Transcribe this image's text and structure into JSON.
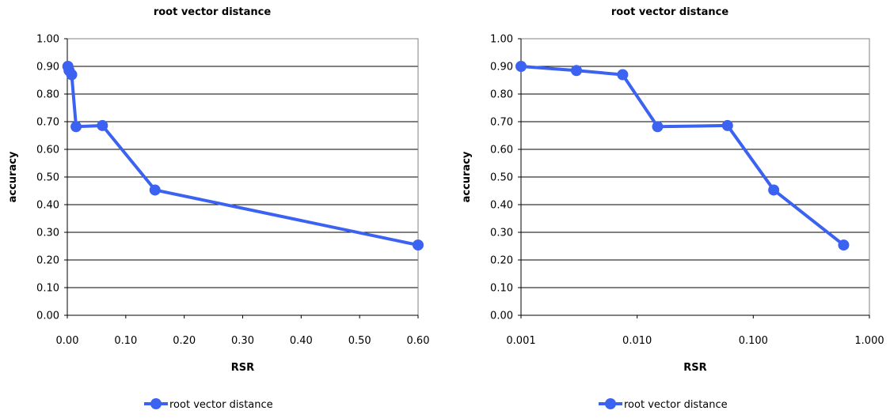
{
  "chart_data": [
    {
      "type": "line",
      "title": "root vector distance",
      "xlabel": "RSR",
      "ylabel": "accuracy",
      "x_scale": "linear",
      "xlim": [
        0,
        0.6
      ],
      "ylim": [
        0,
        1
      ],
      "x_ticks": [
        0,
        0.1,
        0.2,
        0.3,
        0.4,
        0.5,
        0.6
      ],
      "x_tick_labels": [
        "0.00",
        "0.10",
        "0.20",
        "0.30",
        "0.40",
        "0.50",
        "0.60"
      ],
      "y_ticks": [
        0,
        0.1,
        0.2,
        0.3,
        0.4,
        0.5,
        0.6,
        0.7,
        0.8,
        0.9,
        1.0
      ],
      "y_tick_labels": [
        "0.00",
        "0.10",
        "0.20",
        "0.30",
        "0.40",
        "0.50",
        "0.60",
        "0.70",
        "0.80",
        "0.90",
        "1.00"
      ],
      "grid": "horizontal",
      "legend_position": "bottom",
      "series": [
        {
          "name": "root vector distance",
          "color": "#3b62f0",
          "x": [
            0.001,
            0.003,
            0.0075,
            0.015,
            0.06,
            0.15,
            0.6
          ],
          "y": [
            0.9,
            0.885,
            0.87,
            0.682,
            0.686,
            0.453,
            0.254
          ]
        }
      ]
    },
    {
      "type": "line",
      "title": "root vector distance",
      "xlabel": "RSR",
      "ylabel": "accuracy",
      "x_scale": "log",
      "xlim": [
        0.001,
        1.0
      ],
      "ylim": [
        0,
        1
      ],
      "x_ticks": [
        0.001,
        0.01,
        0.1,
        1.0
      ],
      "x_tick_labels": [
        "0.001",
        "0.010",
        "0.100",
        "1.000"
      ],
      "y_ticks": [
        0,
        0.1,
        0.2,
        0.3,
        0.4,
        0.5,
        0.6,
        0.7,
        0.8,
        0.9,
        1.0
      ],
      "y_tick_labels": [
        "0.00",
        "0.10",
        "0.20",
        "0.30",
        "0.40",
        "0.50",
        "0.60",
        "0.70",
        "0.80",
        "0.90",
        "1.00"
      ],
      "grid": "horizontal",
      "legend_position": "bottom",
      "series": [
        {
          "name": "root vector distance",
          "color": "#3b62f0",
          "x": [
            0.001,
            0.003,
            0.0075,
            0.015,
            0.06,
            0.15,
            0.6
          ],
          "y": [
            0.9,
            0.885,
            0.87,
            0.682,
            0.686,
            0.453,
            0.254
          ]
        }
      ]
    }
  ]
}
